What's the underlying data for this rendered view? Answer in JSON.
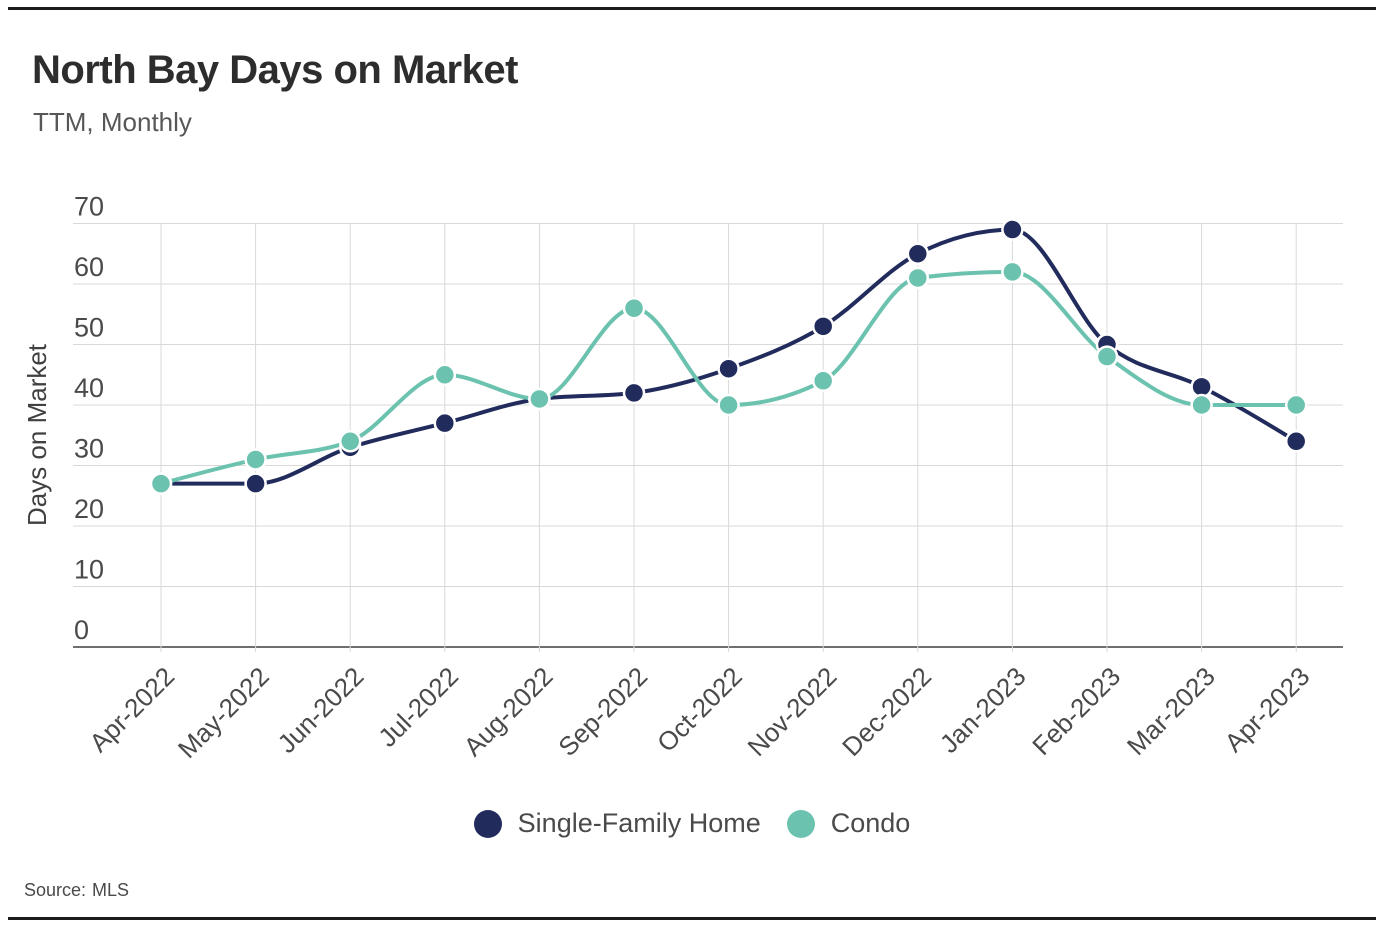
{
  "chart_data": {
    "type": "line",
    "title": "North Bay Days on Market",
    "subtitle": "TTM, Monthly",
    "ylabel": "Days on Market",
    "xlabel": "",
    "categories": [
      "Apr-2022",
      "May-2022",
      "Jun-2022",
      "Jul-2022",
      "Aug-2022",
      "Sep-2022",
      "Oct-2022",
      "Nov-2022",
      "Dec-2022",
      "Jan-2023",
      "Feb-2023",
      "Mar-2023",
      "Apr-2023"
    ],
    "series": [
      {
        "name": "Single-Family Home",
        "color": "#222c5c",
        "values": [
          27,
          27,
          33,
          37,
          41,
          42,
          46,
          53,
          65,
          69,
          50,
          43,
          34
        ]
      },
      {
        "name": "Condo",
        "color": "#6bc2ae",
        "values": [
          27,
          31,
          34,
          45,
          41,
          56,
          40,
          44,
          61,
          62,
          48,
          40,
          40
        ]
      }
    ],
    "ylim": [
      0,
      70
    ],
    "yticks": [
      0,
      10,
      20,
      30,
      40,
      50,
      60,
      70
    ],
    "grid": true,
    "smooth": true,
    "legend_position": "bottom",
    "style": {
      "grid_color": "#d9d9d9",
      "axis_color": "#6f6f6f",
      "tick_label_color": "#4a4a4a",
      "axis_title_color": "#404040",
      "point_outline": "#ffffff"
    }
  },
  "source": {
    "label": "Source:",
    "value": "MLS"
  }
}
